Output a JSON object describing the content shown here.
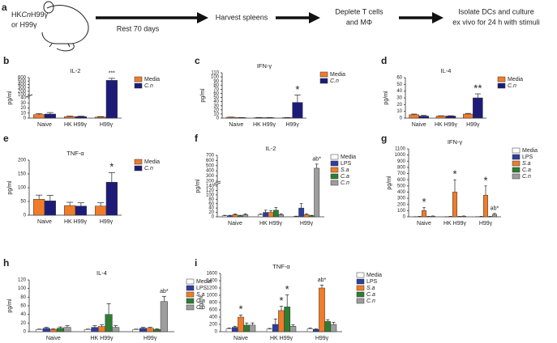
{
  "diagram": {
    "panel": "a",
    "mouse_label": [
      "HK",
      "Cn",
      "H99γ"
    ],
    "mouse_label_2": "or H99γ",
    "steps": [
      "Rest 70 days",
      "Harvest spleens",
      [
        "Deplete T cells",
        "and MΦ"
      ],
      [
        "Isolate DCs and culture",
        "ex vivo for 24 h with stimuli"
      ]
    ]
  },
  "chart_data": [
    {
      "type": "bar",
      "panel": "b",
      "title": "IL-2",
      "ylabel": "pg/ml",
      "categories": [
        "Naive",
        "HK H99γ",
        "H99γ"
      ],
      "ylim": [
        0,
        600
      ],
      "ybreak": [
        40,
        100
      ],
      "yticks": [
        0,
        10,
        20,
        30,
        40,
        100,
        200,
        300,
        400,
        500,
        600
      ],
      "series": [
        {
          "name": "Media",
          "color": "#f07c2a",
          "values": [
            7,
            3,
            2
          ],
          "errors": [
            2,
            1,
            1
          ],
          "annotations": [
            null,
            null,
            null
          ]
        },
        {
          "name": "C.n",
          "italic": true,
          "color": "#1c1c78",
          "values": [
            8,
            3,
            520
          ],
          "errors": [
            3,
            1,
            60
          ],
          "annotations": [
            null,
            null,
            "***"
          ]
        }
      ]
    },
    {
      "type": "bar",
      "panel": "c",
      "title": "IFN-γ",
      "ylabel": "pg/ml",
      "categories": [
        "Naive",
        "HK H99γ",
        "H99γ"
      ],
      "ylim": [
        0,
        110
      ],
      "yticks": [
        0,
        10,
        20,
        30,
        40,
        50,
        60,
        70,
        80,
        90,
        100,
        110
      ],
      "series": [
        {
          "name": "Media",
          "color": "#f07c2a",
          "values": [
            2,
            1,
            1
          ],
          "errors": [
            0.5,
            0.5,
            0.5
          ],
          "annotations": [
            null,
            null,
            null
          ]
        },
        {
          "name": "C.n",
          "italic": true,
          "color": "#1c1c78",
          "values": [
            1,
            1,
            38
          ],
          "errors": [
            0.5,
            0.5,
            18
          ],
          "annotations": [
            null,
            null,
            "*"
          ]
        }
      ]
    },
    {
      "type": "bar",
      "panel": "d",
      "title": "IL-4",
      "ylabel": "pg/ml",
      "categories": [
        "Naive",
        "HK H99γ",
        "H99γ"
      ],
      "ylim": [
        0,
        60
      ],
      "yticks": [
        0,
        10,
        20,
        30,
        40,
        50,
        60
      ],
      "series": [
        {
          "name": "Media",
          "color": "#f07c2a",
          "values": [
            5,
            3,
            6
          ],
          "errors": [
            1,
            0.5,
            1
          ],
          "annotations": [
            null,
            null,
            null
          ]
        },
        {
          "name": "C.n",
          "italic": true,
          "color": "#1c1c78",
          "values": [
            3,
            3,
            30
          ],
          "errors": [
            1,
            0.5,
            6
          ],
          "annotations": [
            null,
            null,
            "**"
          ]
        }
      ]
    },
    {
      "type": "bar",
      "panel": "e",
      "title": "TNF-α",
      "ylabel": "pg/ml",
      "categories": [
        "Naive",
        "HK H99γ",
        "H99γ"
      ],
      "ylim": [
        0,
        200
      ],
      "yticks": [
        0,
        50,
        100,
        150,
        200
      ],
      "series": [
        {
          "name": "Media",
          "color": "#f07c2a",
          "values": [
            58,
            35,
            33
          ],
          "errors": [
            15,
            12,
            12
          ],
          "annotations": [
            null,
            null,
            null
          ]
        },
        {
          "name": "C.n",
          "italic": true,
          "color": "#1c1c78",
          "values": [
            52,
            33,
            120
          ],
          "errors": [
            20,
            12,
            35
          ],
          "annotations": [
            null,
            null,
            "*"
          ]
        }
      ]
    },
    {
      "type": "bar",
      "panel": "f",
      "title": "IL-2",
      "ylabel": "pg/ml",
      "categories": [
        "Naive",
        "HK H99γ",
        "H99γ"
      ],
      "ylim": [
        0,
        700
      ],
      "ybreak": [
        140,
        200
      ],
      "yticks": [
        0,
        20,
        40,
        60,
        80,
        100,
        120,
        140,
        200,
        300,
        400,
        500,
        600,
        700
      ],
      "series": [
        {
          "name": "Media",
          "color": "#ffffff",
          "values": [
            5,
            10,
            2
          ],
          "errors": [
            2,
            4,
            1
          ],
          "annotations": [
            null,
            null,
            null
          ]
        },
        {
          "name": "LPS",
          "color": "#2c3e9e",
          "values": [
            5,
            20,
            40
          ],
          "errors": [
            2,
            10,
            20
          ],
          "annotations": [
            null,
            null,
            null
          ]
        },
        {
          "name": "S.a",
          "italic": true,
          "color": "#f07c2a",
          "values": [
            10,
            20,
            10
          ],
          "errors": [
            3,
            8,
            4
          ],
          "annotations": [
            null,
            null,
            null
          ]
        },
        {
          "name": "C.a",
          "italic": true,
          "color": "#2e7d32",
          "values": [
            5,
            30,
            5
          ],
          "errors": [
            2,
            12,
            2
          ],
          "annotations": [
            null,
            null,
            null
          ]
        },
        {
          "name": "C.n",
          "italic": true,
          "color": "#9e9e9e",
          "values": [
            10,
            10,
            450
          ],
          "errors": [
            4,
            4,
            80
          ],
          "annotations": [
            null,
            null,
            "ab*"
          ]
        }
      ]
    },
    {
      "type": "bar",
      "panel": "g",
      "title": "IFN-γ",
      "ylabel": "pg/ml",
      "categories": [
        "Naive",
        "HK H99γ",
        "H99γ"
      ],
      "ylim": [
        0,
        1100
      ],
      "yticks": [
        0,
        100,
        200,
        300,
        400,
        500,
        600,
        700,
        800,
        900,
        1000,
        1100
      ],
      "series": [
        {
          "name": "Media",
          "color": "#ffffff",
          "values": [
            0,
            0,
            0
          ],
          "errors": [
            1,
            1,
            1
          ],
          "annotations": [
            null,
            null,
            null
          ]
        },
        {
          "name": "LPS",
          "color": "#2c3e9e",
          "values": [
            5,
            5,
            5
          ],
          "errors": [
            2,
            2,
            2
          ],
          "annotations": [
            null,
            null,
            null
          ]
        },
        {
          "name": "S.a",
          "italic": true,
          "color": "#f07c2a",
          "values": [
            100,
            400,
            350
          ],
          "errors": [
            50,
            200,
            150
          ],
          "annotations": [
            "*",
            "*",
            "*"
          ]
        },
        {
          "name": "C.a",
          "italic": true,
          "color": "#2e7d32",
          "values": [
            5,
            5,
            5
          ],
          "errors": [
            2,
            2,
            2
          ],
          "annotations": [
            null,
            null,
            null
          ]
        },
        {
          "name": "C.n",
          "italic": true,
          "color": "#9e9e9e",
          "values": [
            10,
            10,
            40
          ],
          "errors": [
            4,
            4,
            15
          ],
          "annotations": [
            null,
            null,
            "ab*"
          ]
        }
      ]
    },
    {
      "type": "bar",
      "panel": "h",
      "title": "IL-4",
      "ylabel": "pg/ml",
      "categories": [
        "Naive",
        "HK H99γ",
        "H99γ"
      ],
      "ylim": [
        0,
        120
      ],
      "yticks": [
        0,
        20,
        40,
        60,
        80,
        100,
        120
      ],
      "series": [
        {
          "name": "Media",
          "color": "#ffffff",
          "values": [
            5,
            5,
            5
          ],
          "errors": [
            1,
            1,
            1
          ],
          "annotations": [
            null,
            null,
            null
          ]
        },
        {
          "name": "LPS",
          "color": "#2c3e9e",
          "values": [
            8,
            10,
            8
          ],
          "errors": [
            2,
            4,
            2
          ],
          "annotations": [
            null,
            null,
            null
          ]
        },
        {
          "name": "S.a",
          "italic": true,
          "color": "#f07c2a",
          "values": [
            5,
            12,
            8
          ],
          "errors": [
            2,
            4,
            2
          ],
          "annotations": [
            null,
            null,
            null
          ]
        },
        {
          "name": "C.a",
          "italic": true,
          "color": "#2e7d32",
          "values": [
            8,
            40,
            5
          ],
          "errors": [
            3,
            25,
            2
          ],
          "annotations": [
            null,
            null,
            null
          ]
        },
        {
          "name": "C.n",
          "italic": true,
          "color": "#9e9e9e",
          "values": [
            10,
            10,
            70
          ],
          "errors": [
            4,
            4,
            12
          ],
          "annotations": [
            null,
            null,
            "ab*"
          ]
        }
      ]
    },
    {
      "type": "bar",
      "panel": "i",
      "title": "TNF-α",
      "ylabel": "pg/ml",
      "categories": [
        "Naive",
        "HK H99γ",
        "H99γ"
      ],
      "ylim": [
        0,
        1600
      ],
      "yticks": [
        0,
        200,
        400,
        600,
        800,
        1000,
        1200,
        1400,
        1600
      ],
      "series": [
        {
          "name": "Media",
          "color": "#ffffff",
          "values": [
            80,
            70,
            80
          ],
          "errors": [
            20,
            20,
            20
          ],
          "annotations": [
            null,
            null,
            null
          ]
        },
        {
          "name": "LPS",
          "color": "#2c3e9e",
          "values": [
            120,
            200,
            60
          ],
          "errors": [
            30,
            150,
            20
          ],
          "annotations": [
            null,
            null,
            null
          ]
        },
        {
          "name": "S.a",
          "italic": true,
          "color": "#f07c2a",
          "values": [
            400,
            580,
            1200
          ],
          "errors": [
            60,
            120,
            80
          ],
          "annotations": [
            "*",
            "*",
            "ab*"
          ]
        },
        {
          "name": "C.a",
          "italic": true,
          "color": "#2e7d32",
          "values": [
            180,
            680,
            280
          ],
          "errors": [
            60,
            330,
            50
          ],
          "annotations": [
            null,
            "*",
            null
          ]
        },
        {
          "name": "C.n",
          "italic": true,
          "color": "#9e9e9e",
          "values": [
            180,
            150,
            200
          ],
          "errors": [
            60,
            40,
            60
          ],
          "annotations": [
            null,
            null,
            null
          ]
        }
      ]
    }
  ]
}
